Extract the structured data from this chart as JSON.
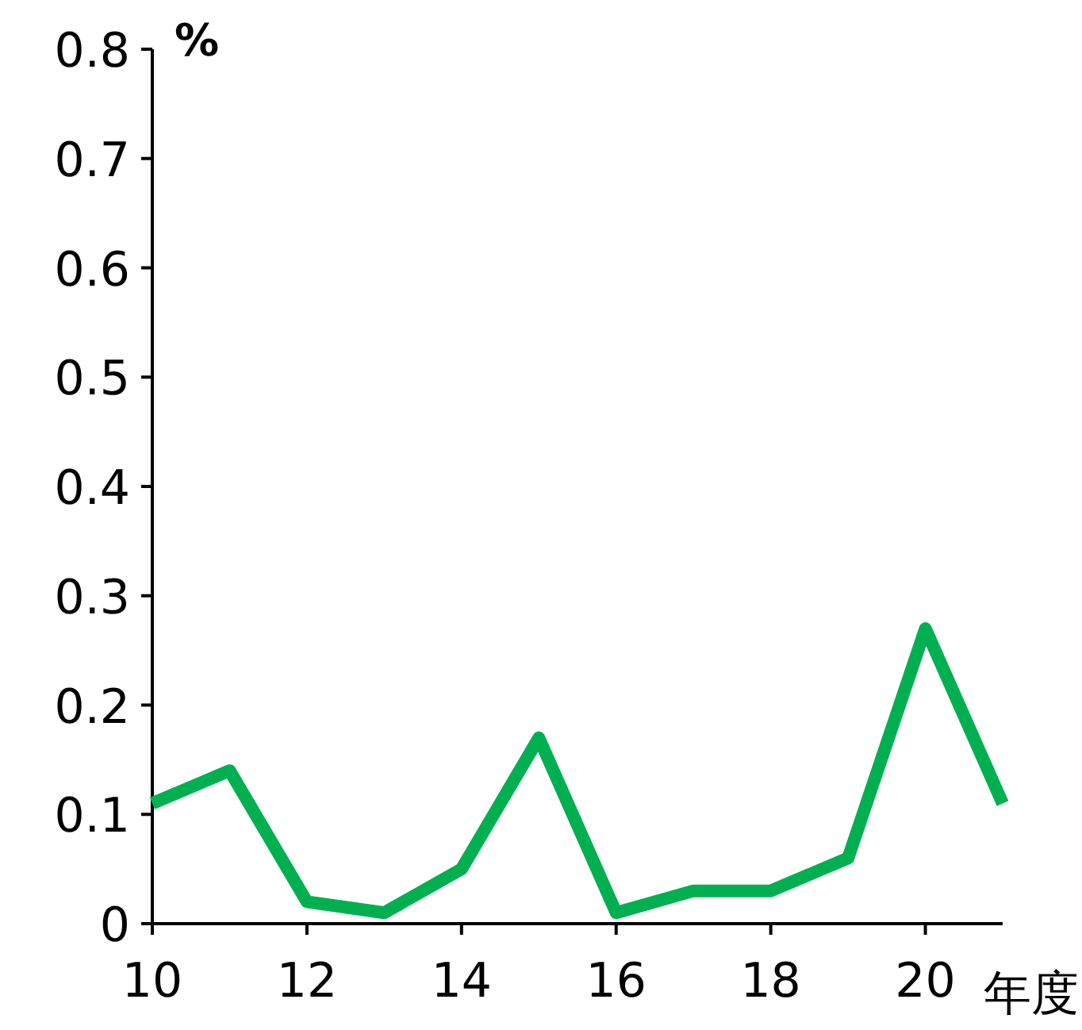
{
  "chart_data": {
    "type": "line",
    "ylabel": "%",
    "xlabel": "年度",
    "x": [
      10,
      11,
      12,
      13,
      14,
      15,
      16,
      17,
      18,
      19,
      20,
      21
    ],
    "series": [
      {
        "color": "#00b050",
        "values": [
          0.11,
          0.14,
          0.02,
          0.01,
          0.05,
          0.17,
          0.01,
          0.03,
          0.03,
          0.06,
          0.27,
          0.11
        ]
      }
    ],
    "xlim": [
      10,
      21
    ],
    "xticks": [
      10,
      12,
      14,
      16,
      18,
      20
    ],
    "ylim": [
      0,
      0.8
    ],
    "yticks": [
      0,
      0.1,
      0.2,
      0.3,
      0.4,
      0.5,
      0.6,
      0.7,
      0.8
    ],
    "marker": "none",
    "line_style": "solid"
  }
}
